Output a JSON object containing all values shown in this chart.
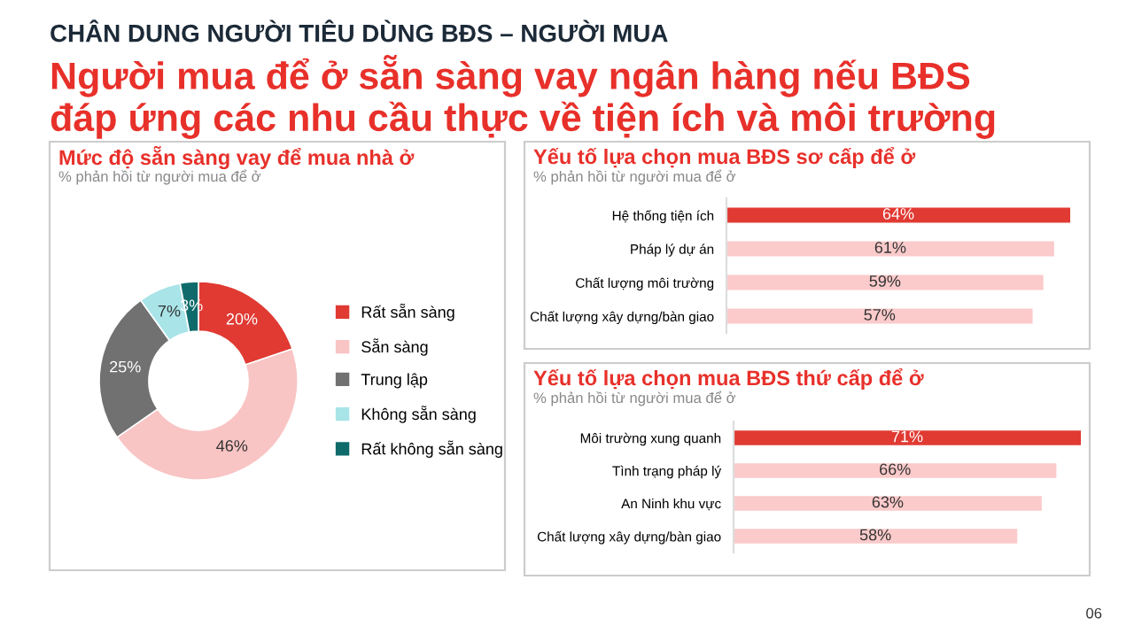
{
  "chart_data": [
    {
      "type": "other",
      "title": "CHÂN DUNG NGƯỜI TIÊU DÙNG BĐS – NGƯỜI MUA",
      "subtitle": "Người mua để ở sẵn sàng vay ngân hàng nếu BĐS\nđáp ứng các nhu cầu thực về tiện ích và môi trường",
      "annotations": [
        "06"
      ]
    },
    {
      "type": "donut",
      "title": "Mức độ sẵn sàng vay để mua nhà ở",
      "subtitle": "% phản hồi từ người mua để ở",
      "categories": [
        "Rất sẵn sàng",
        "Sẵn sàng",
        "Trung lập",
        "Không sẵn sàng",
        "Rất không sẵn sàng"
      ],
      "values": [
        20,
        46,
        25,
        7,
        3
      ],
      "value_labels": [
        "20%",
        "46%",
        "25%",
        "7%",
        "3%"
      ],
      "colors": [
        "#e03a33",
        "#f9c4c4",
        "#717171",
        "#a8e4e8",
        "#0f6b6b"
      ],
      "legend": "right"
    },
    {
      "type": "bar",
      "orientation": "horizontal",
      "title": "Yếu tố lựa chọn mua BĐS sơ cấp để ở",
      "subtitle": "% phản hồi từ người mua để ở",
      "categories": [
        "Hệ thống tiện ích",
        "Pháp lý dự án",
        "Chất lượng môi trường",
        "Chất lượng xây dựng/bàn giao"
      ],
      "values": [
        64,
        61,
        59,
        57
      ],
      "value_labels": [
        "64%",
        "61%",
        "59%",
        "57%"
      ],
      "colors": [
        "#e03a33",
        "#fbcaca",
        "#fbcaca",
        "#fbcaca"
      ],
      "xlim": [
        0,
        64
      ],
      "tick_labels": "y"
    },
    {
      "type": "bar",
      "orientation": "horizontal",
      "title": "Yếu tố lựa chọn mua BĐS thứ cấp để ở",
      "subtitle": "% phản hồi từ người mua để ở",
      "categories": [
        "Môi trường xung quanh",
        "Tình trạng pháp lý",
        "An Ninh khu vực",
        "Chất lượng xây dựng/bàn giao"
      ],
      "values": [
        71,
        66,
        63,
        58
      ],
      "value_labels": [
        "71%",
        "66%",
        "63%",
        "58%"
      ],
      "colors": [
        "#e03a33",
        "#fbcaca",
        "#fbcaca",
        "#fbcaca"
      ],
      "xlim": [
        0,
        71
      ],
      "tick_labels": "y"
    }
  ]
}
